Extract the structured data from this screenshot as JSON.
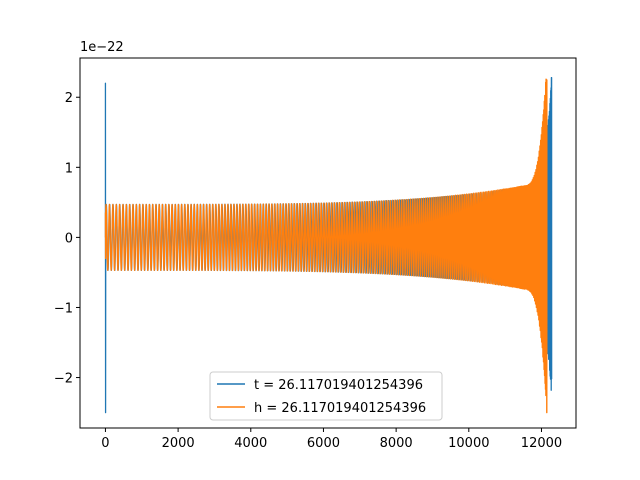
{
  "chart_data": {
    "type": "line",
    "title": "",
    "xlabel": "",
    "ylabel": "",
    "y_offset_label": "1e−22",
    "xlim": [
      -700,
      12950
    ],
    "ylim": [
      -2.72,
      2.56
    ],
    "x_ticks": [
      0,
      2000,
      4000,
      6000,
      8000,
      10000,
      12000
    ],
    "x_tick_labels": [
      "0",
      "2000",
      "4000",
      "6000",
      "8000",
      "10000",
      "12000"
    ],
    "y_ticks": [
      -2,
      -1,
      0,
      1,
      2
    ],
    "y_tick_labels": [
      "−2",
      "−1",
      "0",
      "1",
      "2"
    ],
    "grid": false,
    "legend_position": "bottom-center",
    "series": [
      {
        "name": "t = 26.117019401254396",
        "color": "#1f77b4",
        "x_start": 0,
        "x_end": 12280,
        "envelope_start": 0.47,
        "envelope_near_end": 0.8,
        "spike_start": [
          2.2,
          -2.5
        ],
        "spike_end": [
          2.28,
          -2.02
        ]
      },
      {
        "name": "h = 26.117019401254396",
        "color": "#ff7f0e",
        "x_start": 0,
        "x_end": 12150,
        "envelope_start": 0.47,
        "envelope_near_end": 0.8,
        "spike_start": [
          0.35,
          -0.3
        ],
        "spike_end": [
          2.25,
          -2.5
        ]
      }
    ]
  }
}
